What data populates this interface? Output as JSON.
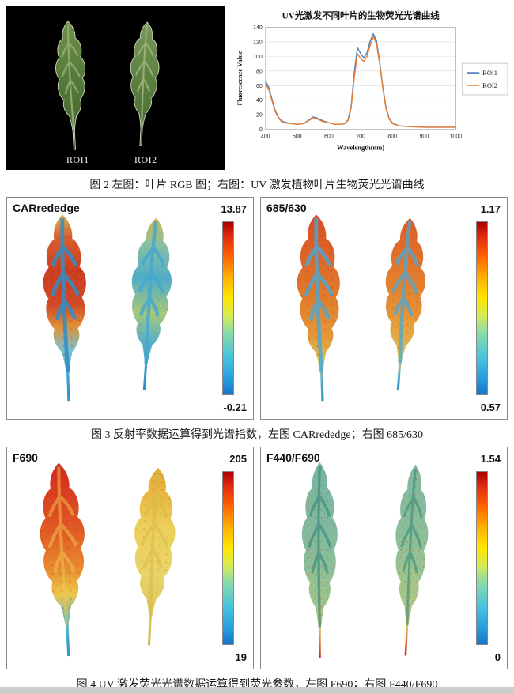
{
  "figure2": {
    "rgb_panel": {
      "roi1": "ROI1",
      "roi2": "ROI2"
    },
    "caption": "图 2 左图：叶片 RGB 图；右图：UV 激发植物叶片生物荧光光谱曲线"
  },
  "chart_data": {
    "type": "line",
    "title": "UV光激发不同叶片的生物荧光光谱曲线",
    "xlabel": "Wavelength(nm)",
    "ylabel": "Fluorescence Value",
    "xlim": [
      400,
      1000
    ],
    "ylim": [
      0,
      140
    ],
    "xticks": [
      400,
      500,
      600,
      700,
      800,
      900,
      1000
    ],
    "yticks": [
      0,
      20,
      40,
      60,
      80,
      100,
      120,
      140
    ],
    "grid": true,
    "legend_position": "right",
    "x": [
      400,
      410,
      420,
      430,
      440,
      450,
      460,
      480,
      500,
      520,
      540,
      550,
      560,
      580,
      600,
      620,
      640,
      650,
      660,
      670,
      680,
      690,
      700,
      710,
      720,
      730,
      740,
      750,
      760,
      770,
      780,
      790,
      800,
      820,
      850,
      900,
      950,
      1000
    ],
    "series": [
      {
        "name": "ROI1",
        "color": "#4a7ebb",
        "values": [
          66,
          58,
          42,
          27,
          17,
          12,
          10,
          8,
          7,
          8,
          14,
          17,
          16,
          12,
          9,
          7,
          7,
          8,
          13,
          32,
          78,
          112,
          104,
          98,
          105,
          121,
          131,
          121,
          93,
          58,
          30,
          15,
          9,
          5,
          4,
          3,
          3,
          3
        ]
      },
      {
        "name": "ROI2",
        "color": "#ed7d31",
        "values": [
          62,
          55,
          40,
          25,
          16,
          11,
          9,
          8,
          7,
          8,
          13,
          16,
          15,
          11,
          9,
          7,
          7,
          8,
          12,
          29,
          71,
          104,
          97,
          93,
          100,
          115,
          127,
          117,
          90,
          56,
          28,
          14,
          8,
          5,
          4,
          3,
          3,
          3
        ]
      }
    ]
  },
  "figure3": {
    "left": {
      "label": "CARrededge",
      "max": "13.87",
      "min": "-0.21"
    },
    "right": {
      "label": "685/630",
      "max": "1.17",
      "min": "0.57"
    },
    "caption": "图 3 反射率数据运算得到光谱指数，左图 CARrededge；右图 685/630"
  },
  "figure4": {
    "left": {
      "label": "F690",
      "max": "205",
      "min": "19"
    },
    "right": {
      "label": "F440/F690",
      "max": "1.54",
      "min": "0"
    },
    "caption": "图 4 UV 激发荧光光谱数据运算得到荧光参数，左图 F690；右图  F440/F690"
  },
  "colors": {
    "roi1_line": "#4a7ebb",
    "roi2_line": "#ed7d31",
    "colormap_top": "#a80000",
    "colormap_mid": "#ffe600",
    "colormap_bottom": "#1874c8"
  }
}
